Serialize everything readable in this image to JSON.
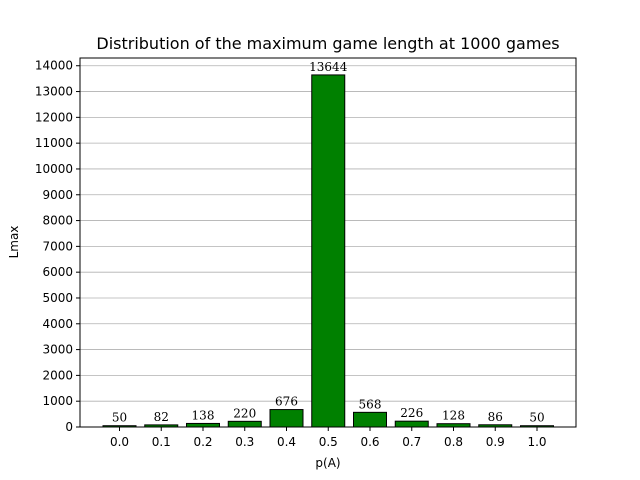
{
  "chart_data": {
    "type": "bar",
    "title": "Distribution of the maximum game length at 1000 games",
    "xlabel": "p(A)",
    "ylabel": "Lmax",
    "categories": [
      "0.0",
      "0.1",
      "0.2",
      "0.3",
      "0.4",
      "0.5",
      "0.6",
      "0.7",
      "0.8",
      "0.9",
      "1.0"
    ],
    "values": [
      50,
      82,
      138,
      220,
      676,
      13644,
      568,
      226,
      128,
      86,
      50
    ],
    "ylim": [
      0,
      14300
    ],
    "yticks": [
      0,
      1000,
      2000,
      3000,
      4000,
      5000,
      6000,
      7000,
      8000,
      9000,
      10000,
      11000,
      12000,
      13000,
      14000
    ],
    "grid": "y",
    "bar_color": "#008000",
    "edge_color": "#000000",
    "grid_color": "#b0b0b0"
  }
}
